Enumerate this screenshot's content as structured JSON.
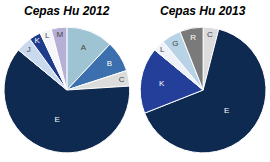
{
  "chart_data": [
    {
      "type": "pie",
      "title": "Cepas Hu 2012",
      "categories": [
        "A",
        "B",
        "C",
        "E",
        "J",
        "K",
        "L",
        "M"
      ],
      "values": [
        12,
        8,
        4,
        62,
        4,
        3,
        3,
        4
      ],
      "colors": [
        "#9ec4d4",
        "#3b6fae",
        "#dcdcdc",
        "#0f2a50",
        "#c9d9ee",
        "#1f3c8c",
        "#f4f6fa",
        "#b7b0d6"
      ]
    },
    {
      "type": "pie",
      "title": "Cepas Hu 2013",
      "categories": [
        "C",
        "E",
        "K",
        "L",
        "G",
        "R"
      ],
      "values": [
        4,
        65,
        17,
        3,
        5,
        6
      ],
      "colors": [
        "#dcdcdc",
        "#0f2a50",
        "#243f9a",
        "#eef2f8",
        "#b9d3e6",
        "#7a7a7a"
      ]
    }
  ]
}
